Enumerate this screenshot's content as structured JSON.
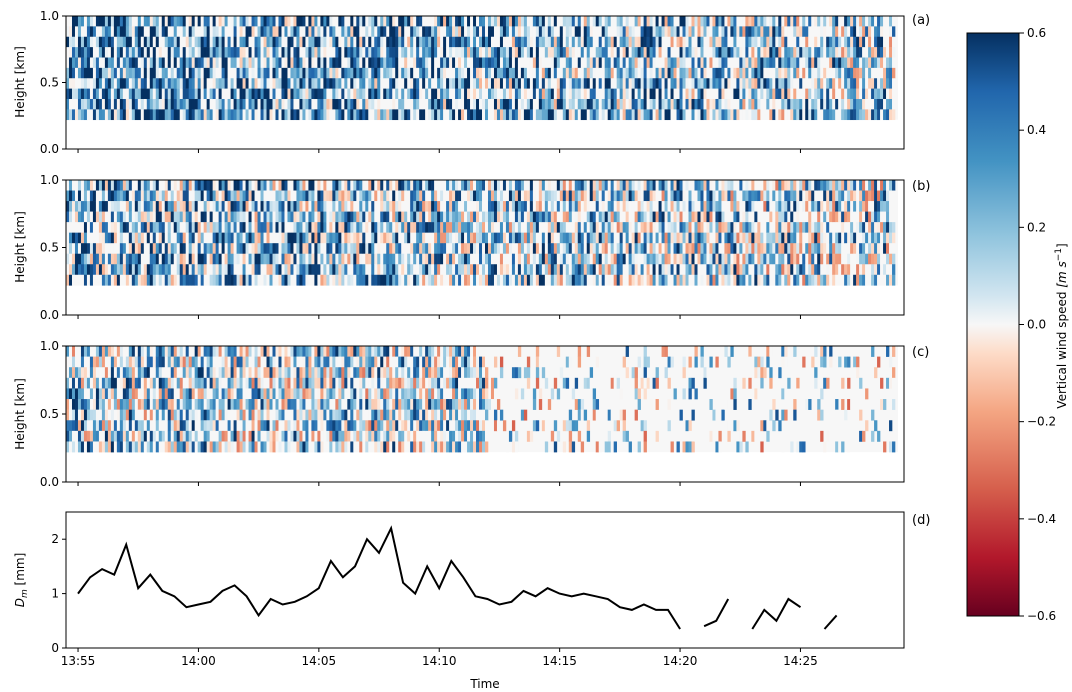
{
  "chart_data": [
    {
      "panel": "(a)",
      "type": "heatmap",
      "ylabel": "Height [km]",
      "yticks": [
        "0.0",
        "0.5",
        "1.0"
      ],
      "ylim": [
        0,
        1.0
      ],
      "data_height_range": [
        0.22,
        1.0
      ],
      "z_range": [
        -0.6,
        0.6
      ],
      "description_seed": 11,
      "mean_bias": 0.35
    },
    {
      "panel": "(b)",
      "type": "heatmap",
      "ylabel": "Height [km]",
      "yticks": [
        "0.0",
        "0.5",
        "1.0"
      ],
      "ylim": [
        0,
        1.0
      ],
      "data_height_range": [
        0.22,
        1.0
      ],
      "z_range": [
        -0.6,
        0.6
      ],
      "description_seed": 23,
      "mean_bias": 0.25
    },
    {
      "panel": "(c)",
      "type": "heatmap",
      "ylabel": "Height [km]",
      "yticks": [
        "0.0",
        "0.5",
        "1.0"
      ],
      "ylim": [
        0,
        1.0
      ],
      "data_height_range": [
        0.22,
        1.0
      ],
      "z_range": [
        -0.6,
        0.6
      ],
      "description_seed": 37,
      "mean_bias": 0.15
    },
    {
      "panel": "(d)",
      "type": "line",
      "ylabel": "D",
      "ylabel_sub": "m",
      "ylabel_unit": " [mm]",
      "xlabel": "Time",
      "yticks": [
        "0",
        "1",
        "2"
      ],
      "ylim": [
        0,
        2.5
      ],
      "x_minutes": [
        0,
        0.5,
        1,
        1.5,
        2,
        2.5,
        3,
        3.5,
        4,
        4.5,
        5,
        5.5,
        6,
        6.5,
        7,
        7.5,
        8,
        8.5,
        9,
        9.5,
        10,
        10.5,
        11,
        11.5,
        12,
        12.5,
        13,
        13.5,
        14,
        14.5,
        15,
        15.5,
        16,
        16.5,
        17,
        17.5,
        18,
        18.5,
        19,
        19.5,
        20,
        20.5,
        21,
        21.5,
        22,
        22.5,
        23,
        23.5,
        24,
        24.5,
        25,
        25.5,
        26,
        26.5,
        27,
        27.5,
        28,
        28.5,
        29,
        29.5,
        30,
        30.5,
        31,
        31.5,
        32,
        32.5,
        33,
        33.5,
        34
      ],
      "y_mm": [
        1.0,
        1.3,
        1.45,
        1.35,
        1.9,
        1.1,
        1.35,
        1.05,
        0.95,
        0.75,
        0.8,
        0.85,
        1.05,
        1.15,
        0.95,
        0.6,
        0.9,
        0.8,
        0.85,
        0.95,
        1.1,
        1.6,
        1.3,
        1.5,
        2.0,
        1.75,
        2.2,
        1.2,
        1.0,
        1.5,
        1.1,
        1.6,
        1.3,
        0.95,
        0.9,
        0.8,
        0.85,
        1.05,
        0.95,
        1.1,
        1.0,
        0.95,
        1.0,
        0.95,
        0.9,
        0.75,
        0.7,
        0.8,
        0.7,
        0.7,
        0.35,
        null,
        0.4,
        0.5,
        0.9,
        null,
        0.35,
        0.7,
        0.5,
        0.9,
        0.75,
        null,
        0.35,
        0.6,
        null,
        null,
        null,
        null,
        null
      ],
      "y_mm_note_free": true
    }
  ],
  "xticks": [
    "13:55",
    "14:00",
    "14:05",
    "14:10",
    "14:15",
    "14:20",
    "14:25"
  ],
  "colorbar": {
    "label": "Vertical wind speed [m s⁻¹]",
    "label_main": "Vertical wind speed ",
    "label_unit": "[m s",
    "label_exp": "−1",
    "label_end": "]",
    "ticks": [
      "0.6",
      "0.4",
      "0.2",
      "0.0",
      "−0.2",
      "−0.4",
      "−0.6"
    ],
    "range": [
      -0.6,
      0.6
    ]
  },
  "colors": {
    "neg_dark": "#67001f",
    "neg": "#d6604d",
    "neutral": "#f7f7f7",
    "pos": "#4393c3",
    "pos_dark": "#053061",
    "line": "#000000"
  }
}
